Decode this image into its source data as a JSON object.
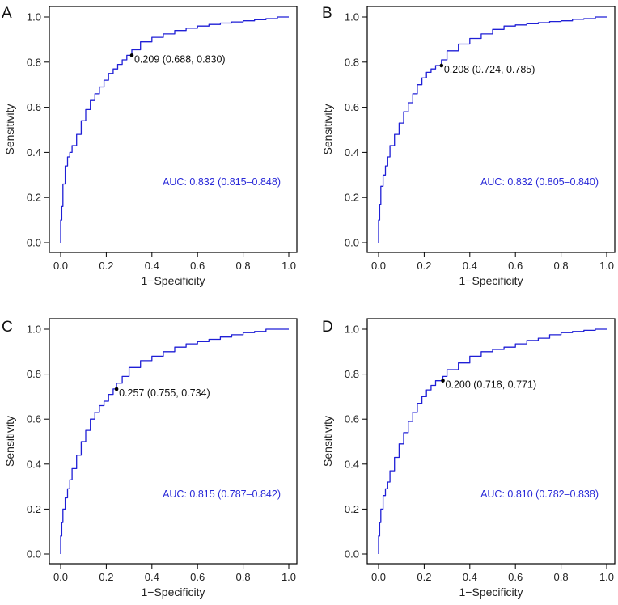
{
  "colors": {
    "roc": "#1f1fd6",
    "auc_text": "#2a2ad8",
    "frame": "#000000",
    "text": "#222222"
  },
  "chart_data": [
    {
      "panel": "A",
      "type": "line",
      "xlabel": "1−Specificity",
      "ylabel": "Sensitivity",
      "xlim": [
        0,
        1
      ],
      "ylim": [
        0,
        1
      ],
      "xticks": [
        "0.0",
        "0.2",
        "0.4",
        "0.6",
        "0.8",
        "1.0"
      ],
      "yticks": [
        "0.0",
        "0.2",
        "0.4",
        "0.6",
        "0.8",
        "1.0"
      ],
      "series": [
        {
          "name": "ROC",
          "x": [
            0,
            0.005,
            0.01,
            0.02,
            0.03,
            0.04,
            0.05,
            0.07,
            0.09,
            0.11,
            0.13,
            0.15,
            0.17,
            0.19,
            0.21,
            0.23,
            0.25,
            0.27,
            0.29,
            0.312,
            0.35,
            0.4,
            0.45,
            0.5,
            0.55,
            0.6,
            0.65,
            0.7,
            0.75,
            0.8,
            0.85,
            0.9,
            0.95,
            1.0
          ],
          "y": [
            0,
            0.1,
            0.16,
            0.26,
            0.34,
            0.38,
            0.4,
            0.43,
            0.48,
            0.54,
            0.59,
            0.63,
            0.66,
            0.69,
            0.72,
            0.75,
            0.77,
            0.79,
            0.81,
            0.83,
            0.855,
            0.89,
            0.91,
            0.925,
            0.94,
            0.95,
            0.96,
            0.967,
            0.973,
            0.978,
            0.983,
            0.988,
            0.993,
            1.0
          ]
        }
      ],
      "threshold": {
        "x": 0.312,
        "y": 0.83,
        "label": "0.209 (0.688, 0.830)"
      },
      "auc_label": "AUC: 0.832 (0.815–0.848)"
    },
    {
      "panel": "B",
      "type": "line",
      "xlabel": "1−Specificity",
      "ylabel": "Sensitivity",
      "xlim": [
        0,
        1
      ],
      "ylim": [
        0,
        1
      ],
      "xticks": [
        "0.0",
        "0.2",
        "0.4",
        "0.6",
        "0.8",
        "1.0"
      ],
      "yticks": [
        "0.0",
        "0.2",
        "0.4",
        "0.6",
        "0.8",
        "1.0"
      ],
      "series": [
        {
          "name": "ROC",
          "x": [
            0,
            0.005,
            0.01,
            0.02,
            0.03,
            0.04,
            0.05,
            0.07,
            0.09,
            0.11,
            0.13,
            0.15,
            0.17,
            0.19,
            0.21,
            0.23,
            0.25,
            0.276,
            0.3,
            0.35,
            0.4,
            0.45,
            0.5,
            0.55,
            0.6,
            0.65,
            0.7,
            0.75,
            0.8,
            0.85,
            0.9,
            0.95,
            0.97,
            1.0
          ],
          "y": [
            0,
            0.1,
            0.17,
            0.25,
            0.3,
            0.34,
            0.38,
            0.43,
            0.48,
            0.53,
            0.58,
            0.62,
            0.66,
            0.7,
            0.73,
            0.755,
            0.77,
            0.785,
            0.81,
            0.85,
            0.88,
            0.905,
            0.925,
            0.945,
            0.96,
            0.965,
            0.97,
            0.975,
            0.98,
            0.983,
            0.99,
            0.993,
            1.0,
            1.0
          ]
        }
      ],
      "threshold": {
        "x": 0.276,
        "y": 0.785,
        "label": "0.208 (0.724, 0.785)"
      },
      "auc_label": "AUC: 0.832 (0.805–0.840)"
    },
    {
      "panel": "C",
      "type": "line",
      "xlabel": "1−Specificity",
      "ylabel": "Sensitivity",
      "xlim": [
        0,
        1
      ],
      "ylim": [
        0,
        1
      ],
      "xticks": [
        "0.0",
        "0.2",
        "0.4",
        "0.6",
        "0.8",
        "1.0"
      ],
      "yticks": [
        "0.0",
        "0.2",
        "0.4",
        "0.6",
        "0.8",
        "1.0"
      ],
      "series": [
        {
          "name": "ROC",
          "x": [
            0,
            0.005,
            0.01,
            0.02,
            0.03,
            0.04,
            0.05,
            0.07,
            0.09,
            0.11,
            0.13,
            0.15,
            0.17,
            0.19,
            0.21,
            0.23,
            0.245,
            0.27,
            0.3,
            0.35,
            0.4,
            0.45,
            0.5,
            0.55,
            0.6,
            0.65,
            0.7,
            0.75,
            0.8,
            0.85,
            0.9,
            0.92,
            0.95,
            1.0
          ],
          "y": [
            0,
            0.08,
            0.14,
            0.2,
            0.25,
            0.29,
            0.33,
            0.38,
            0.44,
            0.5,
            0.55,
            0.6,
            0.63,
            0.66,
            0.68,
            0.71,
            0.734,
            0.76,
            0.79,
            0.83,
            0.86,
            0.88,
            0.9,
            0.92,
            0.935,
            0.945,
            0.955,
            0.965,
            0.975,
            0.985,
            0.99,
            1.0,
            1.0,
            1.0
          ]
        }
      ],
      "threshold": {
        "x": 0.245,
        "y": 0.734,
        "label": "0.257 (0.755, 0.734)"
      },
      "auc_label": "AUC: 0.815 (0.787–0.842)"
    },
    {
      "panel": "D",
      "type": "line",
      "xlabel": "1−Specificity",
      "ylabel": "Sensitivity",
      "xlim": [
        0,
        1
      ],
      "ylim": [
        0,
        1
      ],
      "xticks": [
        "0.0",
        "0.2",
        "0.4",
        "0.6",
        "0.8",
        "1.0"
      ],
      "yticks": [
        "0.0",
        "0.2",
        "0.4",
        "0.6",
        "0.8",
        "1.0"
      ],
      "series": [
        {
          "name": "ROC",
          "x": [
            0,
            0.005,
            0.01,
            0.02,
            0.03,
            0.04,
            0.05,
            0.07,
            0.09,
            0.11,
            0.13,
            0.15,
            0.17,
            0.19,
            0.21,
            0.23,
            0.25,
            0.282,
            0.3,
            0.35,
            0.4,
            0.45,
            0.5,
            0.55,
            0.6,
            0.65,
            0.7,
            0.75,
            0.8,
            0.85,
            0.9,
            0.95,
            0.97,
            1.0
          ],
          "y": [
            0,
            0.08,
            0.14,
            0.2,
            0.26,
            0.29,
            0.32,
            0.37,
            0.43,
            0.49,
            0.54,
            0.59,
            0.63,
            0.67,
            0.7,
            0.73,
            0.75,
            0.771,
            0.79,
            0.82,
            0.85,
            0.88,
            0.9,
            0.91,
            0.92,
            0.935,
            0.95,
            0.96,
            0.975,
            0.985,
            0.99,
            0.995,
            1.0,
            1.0
          ]
        }
      ],
      "threshold": {
        "x": 0.282,
        "y": 0.771,
        "label": "0.200 (0.718, 0.771)"
      },
      "auc_label": "AUC: 0.810 (0.782–0.838)"
    }
  ]
}
